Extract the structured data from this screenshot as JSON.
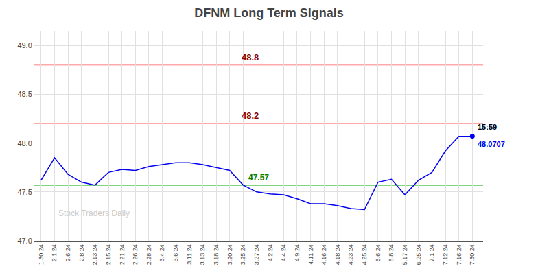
{
  "chart_data": {
    "type": "line",
    "title": "DFNM Long Term Signals",
    "categories": [
      "1.30.24",
      "2.1.24",
      "2.6.24",
      "2.8.24",
      "2.13.24",
      "2.15.24",
      "2.21.24",
      "2.26.24",
      "2.28.24",
      "3.4.24",
      "3.6.24",
      "3.11.24",
      "3.13.24",
      "3.18.24",
      "3.20.24",
      "3.25.24",
      "3.27.24",
      "4.2.24",
      "4.4.24",
      "4.9.24",
      "4.11.24",
      "4.16.24",
      "4.18.24",
      "4.23.24",
      "4.25.24",
      "5.6.24",
      "5.8.24",
      "5.17.24",
      "6.25.24",
      "7.1.24",
      "7.12.24",
      "7.16.24",
      "7.30.24"
    ],
    "values": [
      47.62,
      47.85,
      47.68,
      47.6,
      47.57,
      47.7,
      47.73,
      47.72,
      47.76,
      47.78,
      47.8,
      47.8,
      47.78,
      47.75,
      47.72,
      47.57,
      47.5,
      47.48,
      47.47,
      47.43,
      47.38,
      47.38,
      47.36,
      47.33,
      47.32,
      47.6,
      47.63,
      47.47,
      47.62,
      47.7,
      47.92,
      48.07,
      48.07
    ],
    "color": "#0000ee",
    "ylim": [
      47.0,
      49.15
    ],
    "yticks": [
      {
        "value": 47.0,
        "label": "47.0"
      },
      47.5,
      {
        "value": 48.0,
        "label": "48.0"
      },
      48.5,
      {
        "value": 49.0,
        "label": "49.0"
      }
    ],
    "grid": true,
    "hlines": [
      {
        "value": 48.8,
        "label": "48.8",
        "color": "#ffaaaa",
        "label_color": "#8b0000"
      },
      {
        "value": 48.2,
        "label": "48.2",
        "color": "#ffaaaa",
        "label_color": "#8b0000"
      },
      {
        "value": 47.57,
        "label": "47.57",
        "color": "#00aa00",
        "label_color": "green"
      }
    ],
    "last_point": {
      "value": 48.0707,
      "time_label": "15:59",
      "label": "48.0707"
    },
    "watermark": "Stock Traders Daily"
  }
}
